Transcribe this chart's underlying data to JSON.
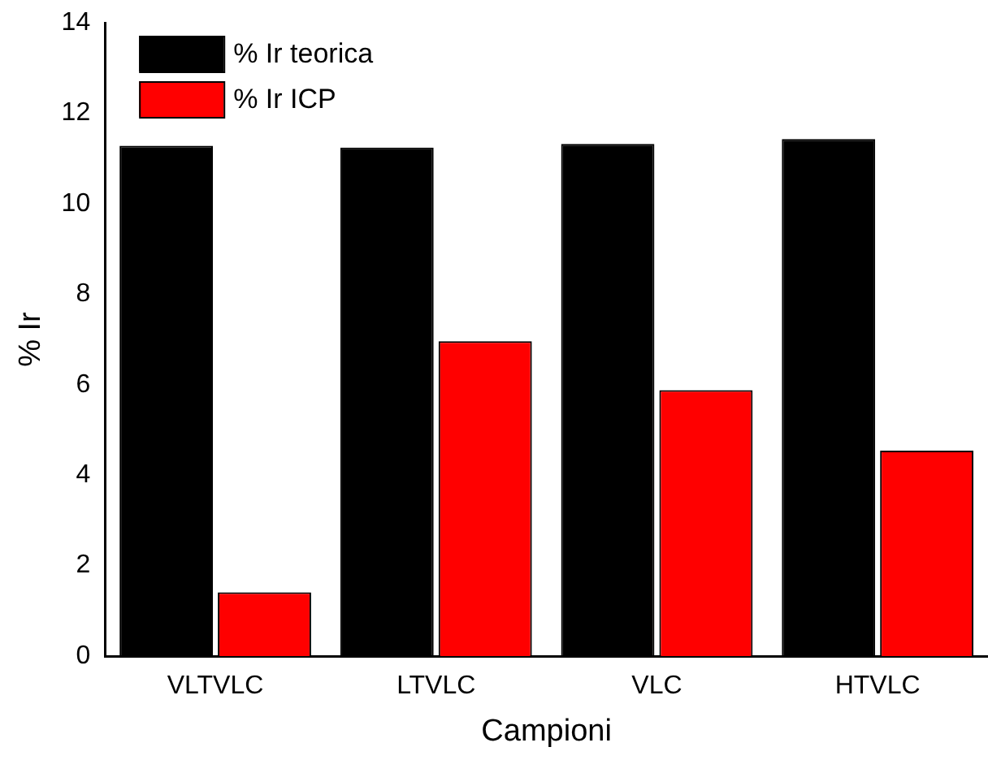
{
  "chart_data": {
    "type": "bar",
    "xlabel": "Campioni",
    "ylabel": "% Ir",
    "categories": [
      "VLTVLC",
      "LTVLC",
      "VLC",
      "HTVLC"
    ],
    "series": [
      {
        "name": "% Ir teorica",
        "color": "#000000",
        "values": [
          11.28,
          11.24,
          11.32,
          11.43
        ]
      },
      {
        "name": "% Ir ICP",
        "color": "#ff0000",
        "values": [
          1.41,
          6.96,
          5.88,
          4.54
        ]
      }
    ],
    "ylim": [
      0,
      14
    ],
    "yticks": [
      0,
      2,
      4,
      6,
      8,
      10,
      12,
      14
    ],
    "grid": false,
    "legend": "top left"
  }
}
